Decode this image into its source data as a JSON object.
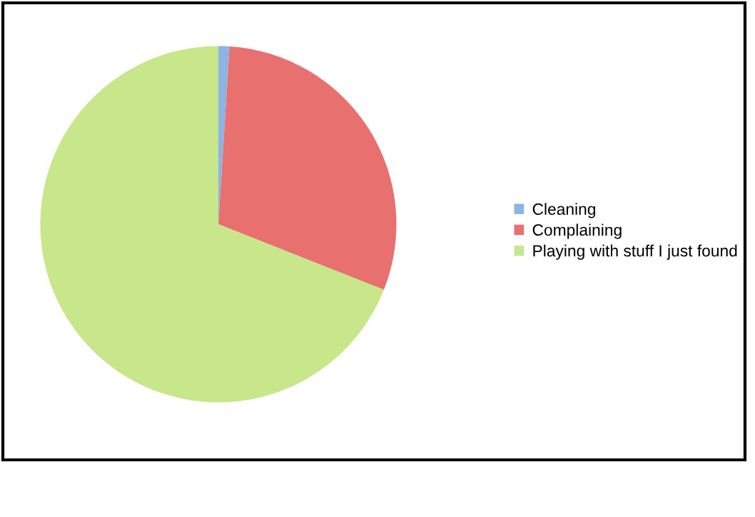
{
  "chart_data": {
    "type": "pie",
    "categories": [
      "Cleaning",
      "Complaining",
      "Playing with stuff I just found"
    ],
    "values": [
      1,
      30,
      69
    ],
    "colors": [
      "#8db4e2",
      "#e8706f",
      "#c8e68a"
    ],
    "legend": "right"
  }
}
